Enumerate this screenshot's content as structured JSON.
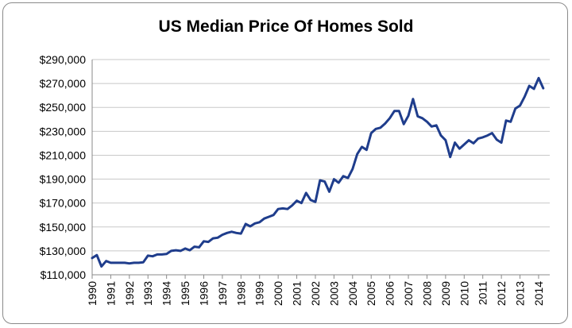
{
  "chart_data": {
    "type": "line",
    "title": "US Median Price Of Homes Sold",
    "xlabel": "",
    "ylabel": "",
    "ylim": [
      110000,
      290000
    ],
    "yticks": [
      110000,
      130000,
      150000,
      170000,
      190000,
      210000,
      230000,
      250000,
      270000,
      290000
    ],
    "ytick_labels": [
      "$110,000",
      "$130,000",
      "$150,000",
      "$170,000",
      "$190,000",
      "$210,000",
      "$230,000",
      "$250,000",
      "$270,000",
      "$290,000"
    ],
    "xlim": [
      1990,
      2014.6
    ],
    "xticks": [
      1990,
      1991,
      1992,
      1993,
      1994,
      1995,
      1996,
      1997,
      1998,
      1999,
      2000,
      2001,
      2002,
      2003,
      2004,
      2005,
      2006,
      2007,
      2008,
      2009,
      2010,
      2011,
      2012,
      2013,
      2014
    ],
    "xtick_labels": [
      "1990",
      "1991",
      "1992",
      "1993",
      "1994",
      "1995",
      "1996",
      "1997",
      "1998",
      "1999",
      "2000",
      "2001",
      "2002",
      "2003",
      "2004",
      "2005",
      "2006",
      "2007",
      "2008",
      "2009",
      "2010",
      "2011",
      "2012",
      "2013",
      "2014"
    ],
    "grid": true,
    "line_color": "#1f3d8c",
    "series": [
      {
        "name": "Median price",
        "x": [
          1990,
          1990.25,
          1990.5,
          1990.75,
          1991,
          1991.25,
          1991.5,
          1991.75,
          1992,
          1992.25,
          1992.5,
          1992.75,
          1993,
          1993.25,
          1993.5,
          1993.75,
          1994,
          1994.25,
          1994.5,
          1994.75,
          1995,
          1995.25,
          1995.5,
          1995.75,
          1996,
          1996.25,
          1996.5,
          1996.75,
          1997,
          1997.25,
          1997.5,
          1997.75,
          1998,
          1998.25,
          1998.5,
          1998.75,
          1999,
          1999.25,
          1999.5,
          1999.75,
          2000,
          2000.25,
          2000.5,
          2000.75,
          2001,
          2001.25,
          2001.5,
          2001.75,
          2002,
          2002.25,
          2002.5,
          2002.75,
          2003,
          2003.25,
          2003.5,
          2003.75,
          2004,
          2004.25,
          2004.5,
          2004.75,
          2005,
          2005.25,
          2005.5,
          2005.75,
          2006,
          2006.25,
          2006.5,
          2006.75,
          2007,
          2007.25,
          2007.5,
          2007.75,
          2008,
          2008.25,
          2008.5,
          2008.75,
          2009,
          2009.25,
          2009.5,
          2009.75,
          2010,
          2010.25,
          2010.5,
          2010.75,
          2011,
          2011.25,
          2011.5,
          2011.75,
          2012,
          2012.25,
          2012.5,
          2012.75,
          2013,
          2013.25,
          2013.5,
          2013.75,
          2014,
          2014.25
        ],
        "values": [
          124000,
          126500,
          117000,
          121500,
          120000,
          120000,
          120000,
          120000,
          119500,
          120000,
          120000,
          120500,
          126000,
          125500,
          127000,
          127000,
          127500,
          130000,
          130500,
          130000,
          132000,
          130500,
          133500,
          133000,
          138000,
          137500,
          140500,
          141000,
          143500,
          145000,
          146000,
          145000,
          144500,
          152500,
          150500,
          153000,
          154000,
          157000,
          158500,
          160000,
          165000,
          165500,
          165000,
          168000,
          172000,
          170000,
          178500,
          172500,
          171000,
          189000,
          188000,
          179500,
          190000,
          187000,
          192500,
          191000,
          198500,
          211000,
          217000,
          214500,
          228500,
          232000,
          233000,
          236500,
          241000,
          247000,
          247000,
          236000,
          243000,
          257000,
          242500,
          241000,
          238000,
          234000,
          235000,
          226500,
          222500,
          208500,
          220500,
          215500,
          219000,
          222500,
          220000,
          224000,
          225000,
          226500,
          228500,
          223000,
          220500,
          239000,
          238000,
          249000,
          251500,
          259000,
          268000,
          265500,
          274500,
          266000
        ]
      }
    ]
  }
}
